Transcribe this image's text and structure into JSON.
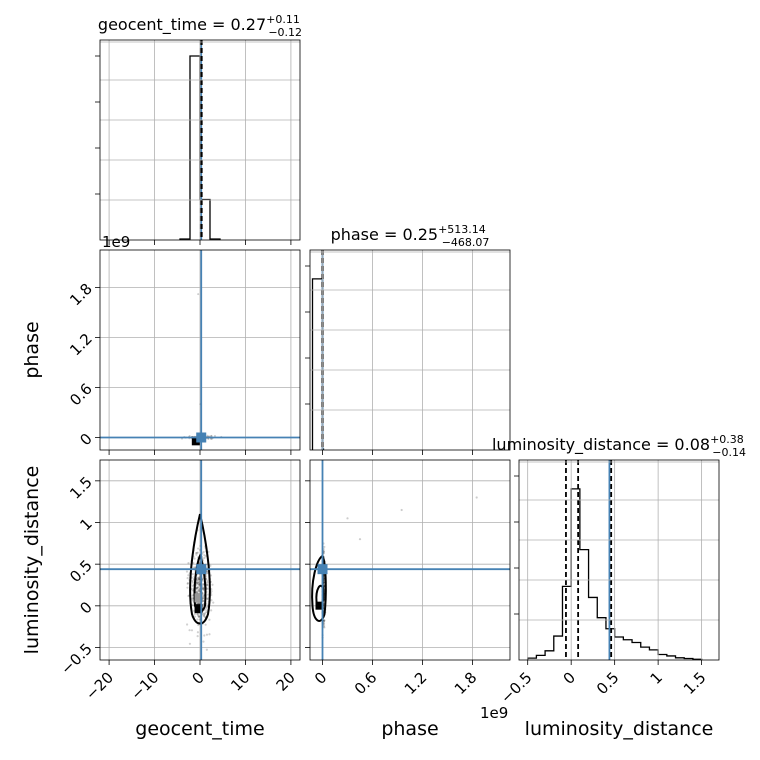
{
  "chart_data": {
    "type": "corner",
    "parameters": [
      "geocent_time",
      "phase",
      "luminosity_distance"
    ],
    "truth_color": "#4682b4",
    "panels": {
      "geocent_time": {
        "type": "histogram",
        "title": {
          "main": "geocent_time = 0.27",
          "sup": "+0.11",
          "sub": "−0.12"
        },
        "xlim": [
          -22,
          22
        ],
        "xticks": [
          -20,
          -10,
          0,
          10,
          20
        ],
        "ylim": [
          0,
          1
        ],
        "bins": [
          {
            "x0": -4.4,
            "x1": -2.2,
            "h": 0.005
          },
          {
            "x0": -2.2,
            "x1": 0.0,
            "h": 1.0
          },
          {
            "x0": 0.0,
            "x1": 2.2,
            "h": 0.22
          },
          {
            "x0": 2.2,
            "x1": 4.4,
            "h": 0.005
          }
        ],
        "quantiles": [
          0.15,
          0.27,
          0.38
        ],
        "truth": 0.27
      },
      "phase": {
        "type": "histogram",
        "title": {
          "main": "phase = 0.25",
          "sup": "+513.14",
          "sub": "−468.07"
        },
        "xlim": [
          -0.15,
          2.25
        ],
        "xticks": [
          0.0,
          0.6,
          1.2,
          1.8
        ],
        "ylim": [
          0,
          1
        ],
        "bins": [
          {
            "x0": -0.12,
            "x1": 0.0,
            "h": 0.93
          },
          {
            "x0": 0.0,
            "x1": 0.012,
            "h": 0.005
          }
        ],
        "quantiles": [
          -0.0005,
          0.0,
          0.0005
        ],
        "truth": 0.0,
        "offset_label": "1e9"
      },
      "luminosity_distance": {
        "type": "histogram",
        "title": {
          "main": "luminosity_distance = 0.08",
          "sup": "+0.38",
          "sub": "−0.14"
        },
        "xlim": [
          -0.6,
          1.7
        ],
        "xticks": [
          -0.5,
          0.0,
          0.5,
          1.0,
          1.5
        ],
        "ylim": [
          0,
          1
        ],
        "bins": [
          {
            "x0": -0.5,
            "x1": -0.4,
            "h": 0.01
          },
          {
            "x0": -0.4,
            "x1": -0.3,
            "h": 0.025
          },
          {
            "x0": -0.3,
            "x1": -0.2,
            "h": 0.05
          },
          {
            "x0": -0.2,
            "x1": -0.1,
            "h": 0.13
          },
          {
            "x0": -0.1,
            "x1": 0.0,
            "h": 0.4
          },
          {
            "x0": 0.0,
            "x1": 0.1,
            "h": 0.93
          },
          {
            "x0": 0.1,
            "x1": 0.2,
            "h": 0.6
          },
          {
            "x0": 0.2,
            "x1": 0.3,
            "h": 0.34
          },
          {
            "x0": 0.3,
            "x1": 0.4,
            "h": 0.23
          },
          {
            "x0": 0.4,
            "x1": 0.5,
            "h": 0.17
          },
          {
            "x0": 0.5,
            "x1": 0.6,
            "h": 0.125
          },
          {
            "x0": 0.6,
            "x1": 0.7,
            "h": 0.11
          },
          {
            "x0": 0.7,
            "x1": 0.8,
            "h": 0.095
          },
          {
            "x0": 0.8,
            "x1": 0.9,
            "h": 0.07
          },
          {
            "x0": 0.9,
            "x1": 1.0,
            "h": 0.055
          },
          {
            "x0": 1.0,
            "x1": 1.1,
            "h": 0.03
          },
          {
            "x0": 1.1,
            "x1": 1.2,
            "h": 0.022
          },
          {
            "x0": 1.2,
            "x1": 1.3,
            "h": 0.012
          },
          {
            "x0": 1.3,
            "x1": 1.4,
            "h": 0.008
          },
          {
            "x0": 1.4,
            "x1": 1.5,
            "h": 0.004
          }
        ],
        "quantiles": [
          -0.06,
          0.08,
          0.46
        ],
        "truth": 0.44
      },
      "phase_vs_geocent_time": {
        "type": "2d-density",
        "xparam": "geocent_time",
        "yparam": "phase",
        "xlim": [
          -22,
          22
        ],
        "ylim": [
          -0.15,
          2.25
        ],
        "yticks": [
          0.0,
          0.6,
          1.2,
          1.8
        ],
        "y_offset_label": "1e9",
        "truth": [
          0.27,
          0.0
        ]
      },
      "luminosity_distance_vs_geocent_time": {
        "type": "2d-density",
        "xparam": "geocent_time",
        "yparam": "luminosity_distance",
        "xlim": [
          -22,
          22
        ],
        "ylim": [
          -0.65,
          1.75
        ],
        "xticks": [
          -20,
          -10,
          0,
          10,
          20
        ],
        "yticks": [
          -0.5,
          0.0,
          0.5,
          1.0,
          1.5
        ],
        "truth": [
          0.27,
          0.44
        ]
      },
      "luminosity_distance_vs_phase": {
        "type": "2d-density",
        "xparam": "phase",
        "yparam": "luminosity_distance",
        "xlim": [
          -0.15,
          2.25
        ],
        "ylim": [
          -0.65,
          1.75
        ],
        "xticks": [
          0.0,
          0.6,
          1.2,
          1.8
        ],
        "x_offset_label": "1e9",
        "truth": [
          0.0,
          0.44
        ]
      }
    },
    "xlabels": [
      "geocent_time",
      "phase",
      "luminosity_distance"
    ],
    "ylabels": [
      "phase",
      "luminosity_distance"
    ],
    "grid": true
  }
}
